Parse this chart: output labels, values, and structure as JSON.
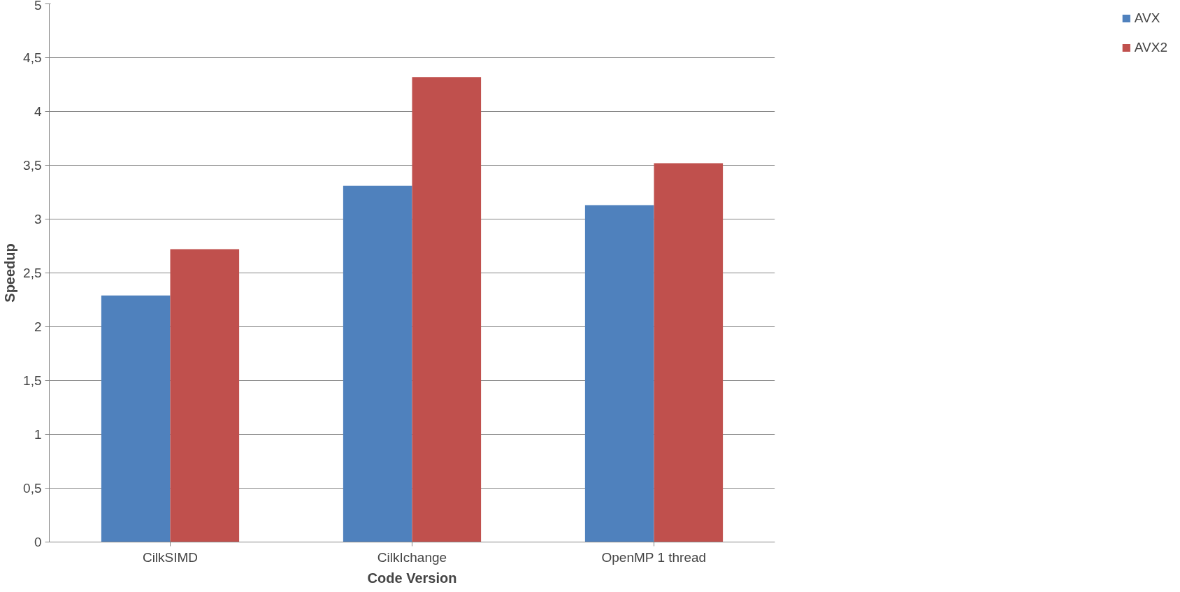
{
  "chart_data": {
    "type": "bar",
    "xlabel": "Code Version",
    "ylabel": "Speedup",
    "categories": [
      "CilkSIMD",
      "CilkIchange",
      "OpenMP 1 thread"
    ],
    "series": [
      {
        "name": "AVX",
        "color": "#4f81bd",
        "values": [
          2.29,
          3.31,
          3.13
        ]
      },
      {
        "name": "AVX2",
        "color": "#c0504d",
        "values": [
          2.72,
          4.32,
          3.52
        ]
      }
    ],
    "ylim": [
      0,
      5
    ],
    "yticks": [
      0,
      {
        "value": 0.5,
        "label": "0,5"
      },
      1,
      {
        "value": 1.5,
        "label": "1,5"
      },
      2,
      {
        "value": 2.5,
        "label": "2,5"
      },
      3,
      {
        "value": 3.5,
        "label": "3,5"
      },
      4,
      {
        "value": 4.5,
        "label": "4,5"
      },
      5
    ],
    "grid": "y",
    "legend": "right"
  }
}
